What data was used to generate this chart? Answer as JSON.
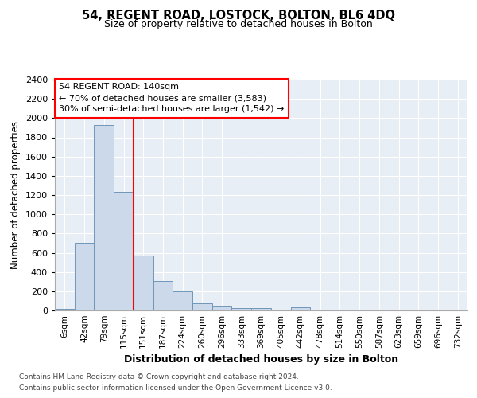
{
  "title": "54, REGENT ROAD, LOSTOCK, BOLTON, BL6 4DQ",
  "subtitle": "Size of property relative to detached houses in Bolton",
  "xlabel": "Distribution of detached houses by size in Bolton",
  "ylabel": "Number of detached properties",
  "categories": [
    "6sqm",
    "42sqm",
    "79sqm",
    "115sqm",
    "151sqm",
    "187sqm",
    "224sqm",
    "260sqm",
    "296sqm",
    "333sqm",
    "369sqm",
    "405sqm",
    "442sqm",
    "478sqm",
    "514sqm",
    "550sqm",
    "587sqm",
    "623sqm",
    "659sqm",
    "696sqm",
    "732sqm"
  ],
  "values": [
    18,
    700,
    1930,
    1230,
    570,
    305,
    200,
    75,
    38,
    28,
    28,
    12,
    30,
    5,
    5,
    3,
    3,
    2,
    2,
    2,
    1
  ],
  "bar_color": "#ccd9ea",
  "bar_edge_color": "#7096b8",
  "red_line_x": 3.5,
  "annotation_text": "54 REGENT ROAD: 140sqm\n← 70% of detached houses are smaller (3,583)\n30% of semi-detached houses are larger (1,542) →",
  "ylim": [
    0,
    2400
  ],
  "yticks": [
    0,
    200,
    400,
    600,
    800,
    1000,
    1200,
    1400,
    1600,
    1800,
    2000,
    2200,
    2400
  ],
  "footer_line1": "Contains HM Land Registry data © Crown copyright and database right 2024.",
  "footer_line2": "Contains public sector information licensed under the Open Government Licence v3.0.",
  "plot_bg_color": "#e8eef5"
}
